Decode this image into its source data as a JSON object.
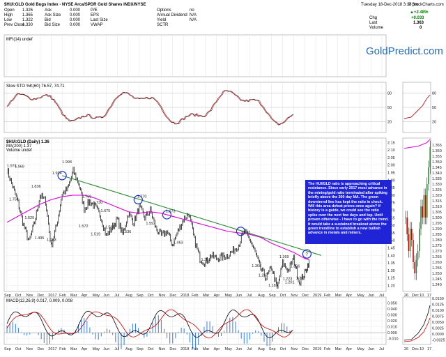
{
  "header": {
    "symbol_title": "$HUI:GLD Gold Bugs Index - NYSE Arca/SPDR Gold Shares INDX/NYSE",
    "date": "Tuesday 18-Dec-2018 3:18 pm",
    "change_pct": "▲+2.48%",
    "chg_label": "Chg",
    "chg_value": "+0.033",
    "last_label": "Last",
    "last_value": "1.363",
    "volume_label": "Volume",
    "volume_value": "0",
    "brand": "© StockCharts.com",
    "quote": [
      [
        "Open",
        "1.326",
        "Ask",
        "0.000",
        "P/E",
        "",
        "Options",
        "no"
      ],
      [
        "High",
        "1.365",
        "Ask Size",
        "0.000",
        "EPS",
        "",
        "Annual Dividend",
        "N/A"
      ],
      [
        "Low",
        "1.322",
        "Bid",
        "0.000",
        "Last Size",
        "",
        "Yield",
        "N/A"
      ],
      [
        "Prev Close",
        "1.330",
        "Bid Size",
        "0.000",
        "VWAP",
        "",
        "SCTR",
        ""
      ]
    ]
  },
  "watermark": "GoldPredict.com",
  "panels": {
    "mfi_label": "MFI(14) undef",
    "sto_label": "Slow STO %K(60) 76.57, 74.71",
    "price_label": "$HUI:GLD (Daily) 1.36",
    "ma_label": "MA(200) 1.37",
    "vol_label": "Volume undef",
    "macd_label": "MACD(12,26,9) 0.017, 0.009, 0.008"
  },
  "annotation": "The HUI/GLD ratio is approaching critical resistance. Since early 2017 most advance in the mining/gold ratio terminated after spiking briefly above the 200 day MA. The green downtrend line has kept the ratio in check. Will this area defeat prices once again? If history is a guide, we could see the ratio spike over the next few days and top. Until proven otherwise - I have to go with the trend. It would take a sustained breakout above the green trendline to establish a new bullish advance in metals and miners.",
  "chart_data": {
    "type": "line",
    "title": "$HUI:GLD Gold Bugs Index - NYSE Arca/SPDR Gold Shares INDX/NYSE",
    "x_ticks": [
      "Sep",
      "Oct",
      "Nov",
      "Dec",
      "2017",
      "Feb",
      "Mar",
      "Apr",
      "May",
      "Jun",
      "Jul",
      "Aug",
      "Sep",
      "Oct",
      "Nov",
      "Dec",
      "2018",
      "Feb",
      "Mar",
      "Apr",
      "May",
      "Jun",
      "Jul",
      "Aug",
      "Sep",
      "Oct",
      "Nov",
      "Dec",
      "2019",
      "Feb",
      "Mar",
      "Apr",
      "May",
      "Jun",
      "Jul"
    ],
    "inset_x_ticks": [
      "26",
      "Dec",
      "10",
      "17"
    ],
    "price_y_ticks": [
      1.2,
      1.25,
      1.3,
      1.35,
      1.4,
      1.45,
      1.5,
      1.55,
      1.6,
      1.65,
      1.7,
      1.75,
      1.8,
      1.85,
      1.9,
      1.95,
      2.0,
      2.05,
      2.1,
      2.15
    ],
    "price_ylim": [
      1.17,
      2.17
    ],
    "inset_y_ticks": [
      1.24,
      1.245,
      1.25,
      1.255,
      1.26,
      1.265,
      1.27,
      1.275,
      1.28,
      1.285,
      1.29,
      1.295,
      1.3,
      1.305,
      1.31,
      1.315,
      1.32,
      1.325,
      1.33,
      1.335,
      1.34,
      1.345,
      1.35,
      1.355,
      1.36,
      1.365
    ],
    "sto_y_ticks": [
      20,
      50,
      80
    ],
    "macd_y_ticks": [
      0.05,
      0.04,
      0.03,
      0.02,
      0.01,
      0.0,
      -0.01
    ],
    "inset_macd_y_ticks": [
      0.015,
      0.0125,
      0.01,
      0.0075,
      0.005,
      0.0025,
      0.0,
      -0.0025
    ],
    "series": [
      {
        "name": "$HUI:GLD (Daily)",
        "x": [
          0,
          0.5,
          1,
          1.5,
          2,
          2.5,
          3,
          3.5,
          4,
          4.5,
          5,
          5.5,
          6,
          6.5,
          7,
          7.5,
          8,
          8.5,
          9,
          9.5,
          10,
          10.5,
          11,
          11.5,
          12,
          12.5,
          13,
          13.5,
          14,
          14.5,
          15,
          15.5,
          16,
          16.5,
          17,
          17.5,
          18,
          18.5,
          19,
          19.5,
          20,
          20.5,
          21,
          21.5,
          22,
          22.5,
          23,
          23.5,
          24,
          24.5,
          25,
          25.5,
          26,
          26.5,
          27,
          27.4
        ],
        "values": [
          1.97,
          1.86,
          1.75,
          1.6,
          1.49,
          1.62,
          1.8,
          1.76,
          1.46,
          1.6,
          1.81,
          1.84,
          1.96,
          1.88,
          1.71,
          1.76,
          1.72,
          1.66,
          1.53,
          1.58,
          1.64,
          1.54,
          1.68,
          1.62,
          1.72,
          1.65,
          1.7,
          1.58,
          1.53,
          1.56,
          1.47,
          1.56,
          1.64,
          1.68,
          1.5,
          1.38,
          1.35,
          1.4,
          1.38,
          1.39,
          1.4,
          1.43,
          1.47,
          1.56,
          1.51,
          1.42,
          1.31,
          1.25,
          1.32,
          1.18,
          1.35,
          1.3,
          1.38,
          1.22,
          1.28,
          1.363
        ]
      },
      {
        "name": "MA(200)",
        "x": [
          0,
          1,
          2,
          3,
          4,
          5,
          6,
          7,
          8,
          9,
          10,
          11,
          12,
          13,
          14,
          15,
          16,
          17,
          18,
          19,
          20,
          21,
          22,
          23,
          24,
          25,
          26,
          27,
          27.4
        ],
        "values": [
          1.62,
          1.66,
          1.7,
          1.74,
          1.77,
          1.79,
          1.8,
          1.8,
          1.78,
          1.75,
          1.72,
          1.69,
          1.68,
          1.69,
          1.68,
          1.66,
          1.64,
          1.62,
          1.6,
          1.58,
          1.56,
          1.55,
          1.54,
          1.52,
          1.48,
          1.45,
          1.42,
          1.38,
          1.37
        ]
      }
    ],
    "highlighted_levels": [
      {
        "label": "1.974",
        "x": 0,
        "y": 1.974
      },
      {
        "label": "1.969",
        "x": 0.7,
        "y": 1.969
      },
      {
        "label": "1.751",
        "x": 0.2,
        "y": 1.751
      },
      {
        "label": "1.836",
        "x": 2.2,
        "y": 1.836
      },
      {
        "label": "1.629",
        "x": 1.6,
        "y": 1.629
      },
      {
        "label": "1.495",
        "x": 2.5,
        "y": 1.495
      },
      {
        "label": "1.483",
        "x": 3.6,
        "y": 1.483
      },
      {
        "label": "1.924",
        "x": 4.1,
        "y": 1.924
      },
      {
        "label": "1.998",
        "x": 5.0,
        "y": 1.998
      },
      {
        "label": "1.769",
        "x": 6.8,
        "y": 1.769
      },
      {
        "label": "1.730",
        "x": 7.8,
        "y": 1.73
      },
      {
        "label": "1.675",
        "x": 8.5,
        "y": 1.675
      },
      {
        "label": "1.572",
        "x": 6.5,
        "y": 1.572
      },
      {
        "label": "1.519",
        "x": 7.6,
        "y": 1.519
      },
      {
        "label": "1.565",
        "x": 8.9,
        "y": 1.565
      },
      {
        "label": "1.536",
        "x": 10.4,
        "y": 1.536
      },
      {
        "label": "1.770",
        "x": 11.8,
        "y": 1.77
      },
      {
        "label": "1.592",
        "x": 12.6,
        "y": 1.592
      },
      {
        "label": "1.673",
        "x": 14.4,
        "y": 1.673
      },
      {
        "label": "1.463",
        "x": 15.1,
        "y": 1.463
      },
      {
        "label": "1.351",
        "x": 17.6,
        "y": 1.351
      },
      {
        "label": "1.532",
        "x": 21.2,
        "y": 1.532
      },
      {
        "label": "1.308",
        "x": 22.2,
        "y": 1.308
      },
      {
        "label": "1.247",
        "x": 22.8,
        "y": 1.247
      },
      {
        "label": "1.180",
        "x": 23.7,
        "y": 1.18
      },
      {
        "label": "1.369",
        "x": 24.7,
        "y": 1.369
      },
      {
        "label": "1.306",
        "x": 25.7,
        "y": 1.306
      },
      {
        "label": "1.223",
        "x": 25.0,
        "y": 1.223
      },
      {
        "label": "1.201",
        "x": 25.2,
        "y": 1.201
      },
      {
        "label": "1.227",
        "x": 26.2,
        "y": 1.227
      }
    ],
    "trendline": {
      "name": "green downtrend line",
      "from": {
        "x": 5.0,
        "y": 1.93
      },
      "to": {
        "x": 28.5,
        "y": 1.4
      }
    },
    "grid": true
  },
  "colors": {
    "price": "#000000",
    "ma": "#e000e0",
    "trend": "#2e8b3a",
    "macd_signal": "#cc0000",
    "histogram": "#3a7bd5",
    "annotation_bg": "#1f24d6",
    "circle": "#1c2fd0"
  }
}
